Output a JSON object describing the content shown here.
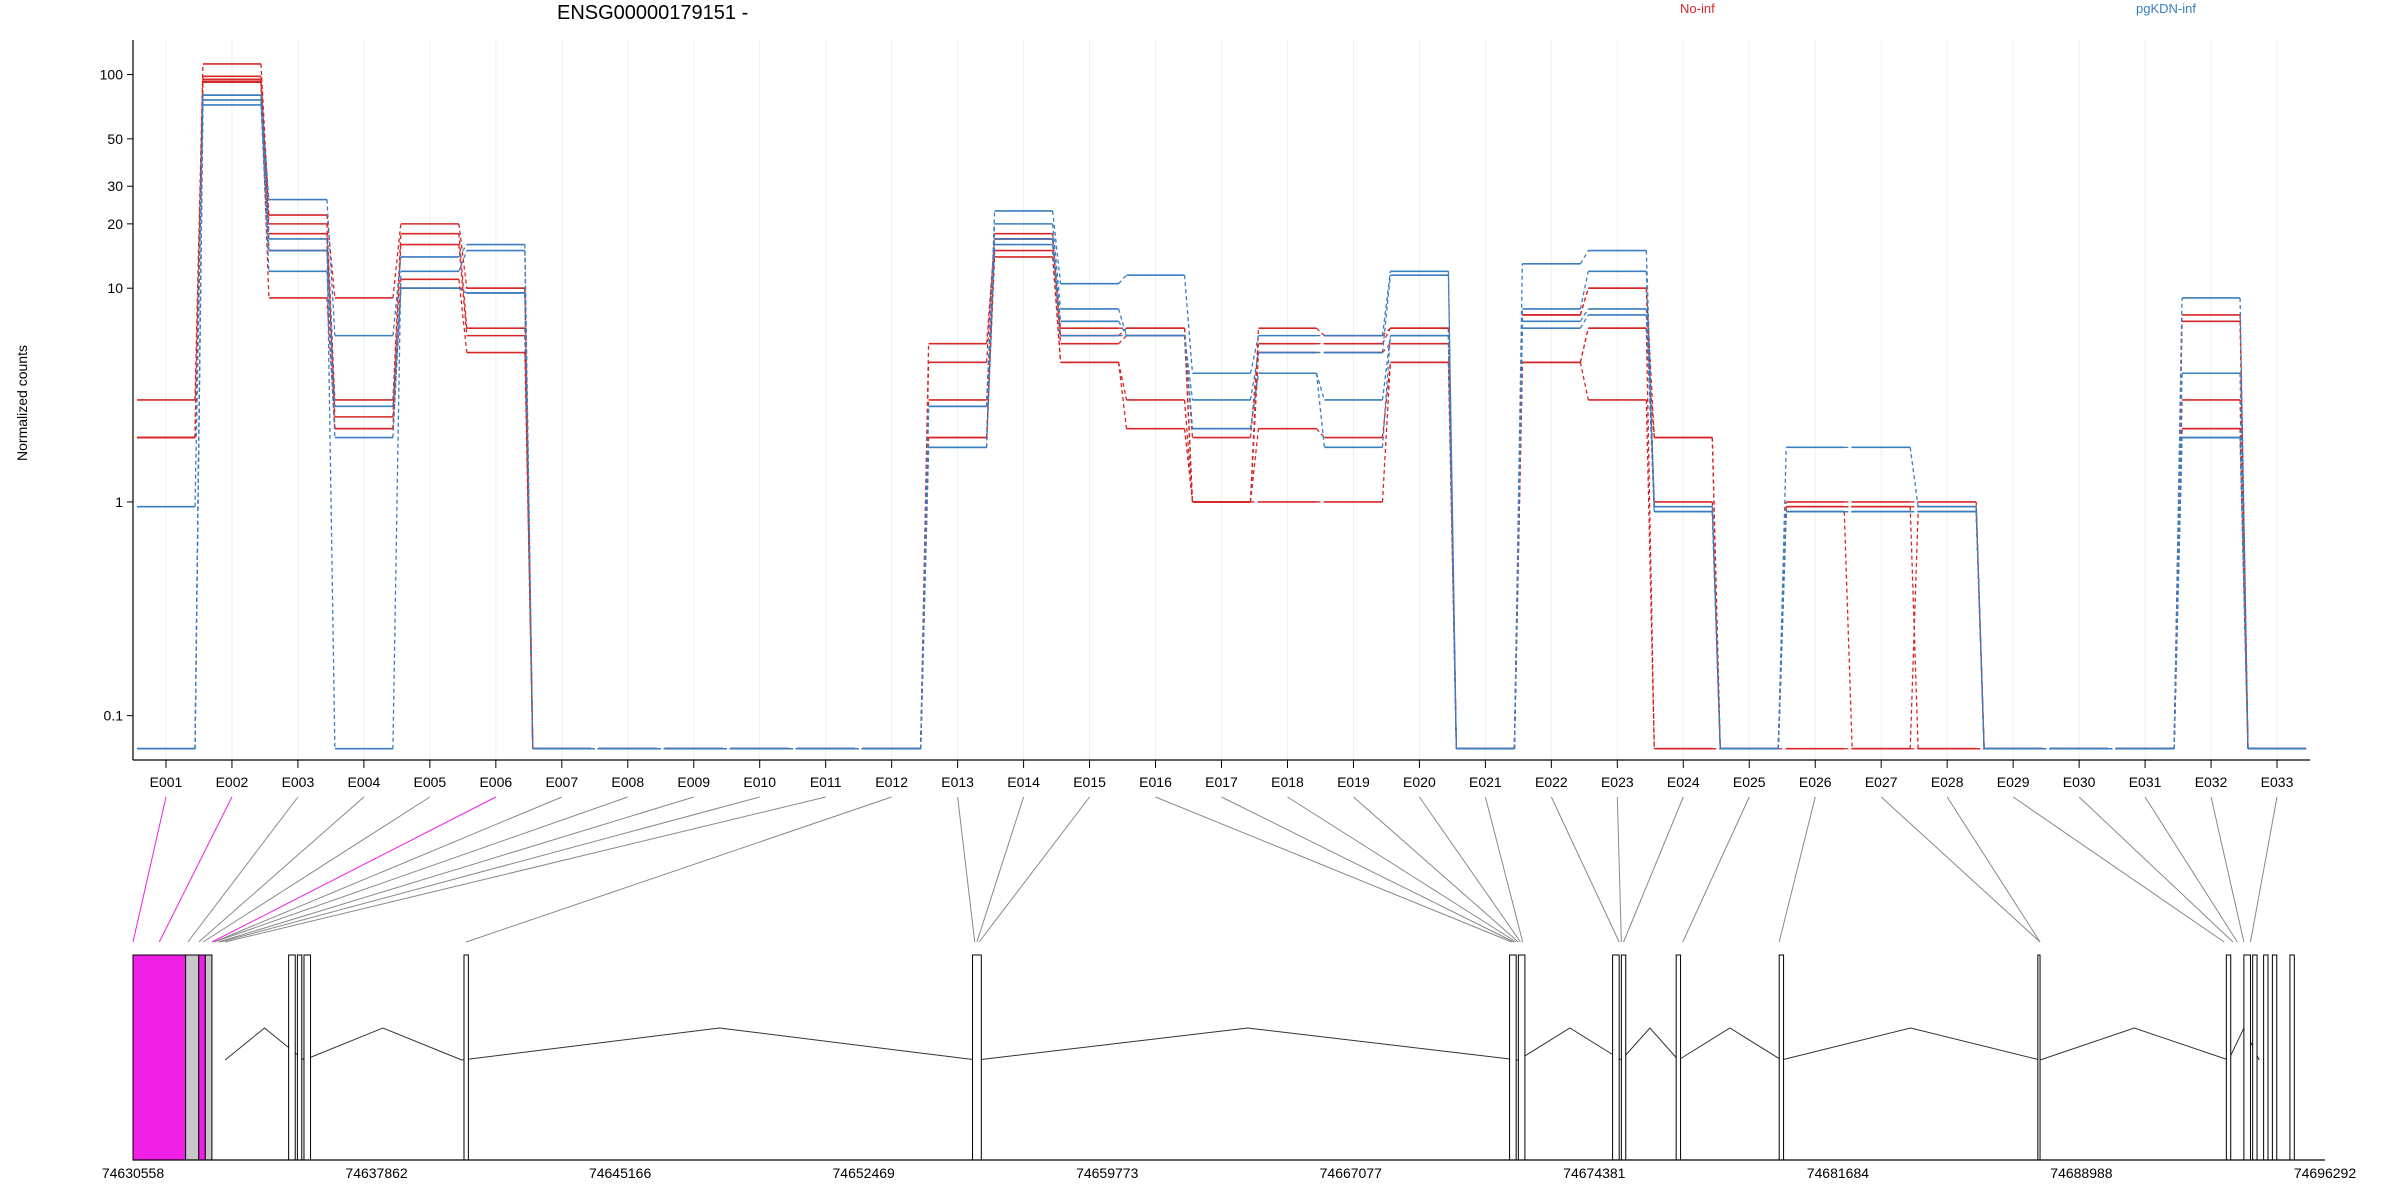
{
  "chart_data": {
    "type": "line",
    "title": "ENSG00000179151 -",
    "ylabel": "Normalized counts",
    "xlabel": "",
    "y_scale": "log",
    "ylim": [
      0.07,
      140
    ],
    "y_ticks": [
      0.1,
      1,
      10,
      20,
      30,
      50,
      100
    ],
    "y_tick_labels": [
      "0.1",
      "1",
      "10",
      "20",
      "30",
      "50",
      "100"
    ],
    "categories": [
      "E001",
      "E002",
      "E003",
      "E004",
      "E005",
      "E006",
      "E007",
      "E008",
      "E009",
      "E010",
      "E011",
      "E012",
      "E013",
      "E014",
      "E015",
      "E016",
      "E017",
      "E018",
      "E019",
      "E020",
      "E021",
      "E022",
      "E023",
      "E024",
      "E025",
      "E026",
      "E027",
      "E028",
      "E029",
      "E030",
      "E031",
      "E032",
      "E033"
    ],
    "legend": [
      {
        "name": "No-inf",
        "color": "#d62728"
      },
      {
        "name": "pgKDN-inf",
        "color": "#3a7dc0"
      }
    ],
    "series": [
      {
        "group": "No-inf",
        "color": "#d62728",
        "values": [
          3.0,
          112,
          22,
          9.0,
          20,
          10.0,
          0.07,
          0.07,
          0.07,
          0.07,
          0.07,
          0.07,
          5.5,
          17,
          6.5,
          6.5,
          2.0,
          5.5,
          5.5,
          6.5,
          0.07,
          7.5,
          10.0,
          2.0,
          0.07,
          1.0,
          1.0,
          1.0,
          0.07,
          0.07,
          0.07,
          7.5,
          0.07
        ]
      },
      {
        "group": "No-inf",
        "color": "#d62728",
        "values": [
          2.0,
          98,
          20,
          3.0,
          18,
          6.5,
          0.07,
          0.07,
          0.07,
          0.07,
          0.07,
          0.07,
          4.5,
          18,
          6.0,
          6.5,
          1.0,
          6.5,
          6.0,
          6.5,
          0.07,
          7.5,
          10.0,
          1.0,
          0.07,
          0.95,
          0.95,
          0.95,
          0.07,
          0.07,
          0.07,
          7.0,
          0.07
        ]
      },
      {
        "group": "No-inf",
        "color": "#d62728",
        "values": [
          2.0,
          95,
          18,
          2.5,
          16,
          6.0,
          0.07,
          0.07,
          0.07,
          0.07,
          0.07,
          0.07,
          3.0,
          17,
          5.5,
          6.0,
          1.0,
          5.0,
          5.0,
          5.5,
          0.07,
          4.5,
          6.5,
          2.0,
          0.07,
          0.9,
          0.07,
          0.9,
          0.07,
          0.07,
          0.07,
          3.0,
          0.07
        ]
      },
      {
        "group": "No-inf",
        "color": "#d62728",
        "values": [
          2.0,
          93,
          15,
          2.2,
          11,
          5.0,
          0.07,
          0.07,
          0.07,
          0.07,
          0.07,
          0.07,
          2.0,
          15,
          4.5,
          3.0,
          1.0,
          1.0,
          1.0,
          4.5,
          0.07,
          4.5,
          3.0,
          0.07,
          0.07,
          0.95,
          0.95,
          0.07,
          0.07,
          0.07,
          0.07,
          2.2,
          0.07
        ]
      },
      {
        "group": "No-inf",
        "color": "#d62728",
        "values": [
          2.0,
          92,
          9.0,
          2.2,
          10.0,
          10.0,
          0.07,
          0.07,
          0.07,
          0.07,
          0.07,
          0.07,
          2.0,
          14,
          4.5,
          2.2,
          1.0,
          2.2,
          2.0,
          4.5,
          0.07,
          4.5,
          6.5,
          0.07,
          0.07,
          0.07,
          0.07,
          0.07,
          0.07,
          0.07,
          0.07,
          2.2,
          0.07
        ]
      },
      {
        "group": "pgKDN-inf",
        "color": "#3a7dc0",
        "values": [
          0.95,
          80,
          26,
          6.0,
          14,
          16,
          0.07,
          0.07,
          0.07,
          0.07,
          0.07,
          0.07,
          1.8,
          23,
          10.5,
          11.5,
          4.0,
          6.0,
          6.0,
          12.0,
          0.07,
          13.0,
          15,
          0.95,
          0.07,
          1.8,
          1.8,
          0.95,
          0.07,
          0.07,
          0.07,
          9.0,
          0.07
        ]
      },
      {
        "group": "pgKDN-inf",
        "color": "#3a7dc0",
        "values": [
          0.07,
          80,
          17,
          0.07,
          12,
          15,
          0.07,
          0.07,
          0.07,
          0.07,
          0.07,
          0.07,
          2.8,
          20,
          8.0,
          6.0,
          3.0,
          5.0,
          5.0,
          11.5,
          0.07,
          8.0,
          12.0,
          0.9,
          0.07,
          0.9,
          0.9,
          0.9,
          0.07,
          0.07,
          0.07,
          4.0,
          0.07
        ]
      },
      {
        "group": "pgKDN-inf",
        "color": "#3a7dc0",
        "values": [
          0.07,
          76,
          15,
          2.8,
          10.0,
          9.5,
          0.07,
          0.07,
          0.07,
          0.07,
          0.07,
          0.07,
          2.8,
          17,
          7.0,
          6.0,
          2.2,
          4.0,
          3.0,
          6.0,
          0.07,
          7.0,
          8.0,
          0.9,
          0.07,
          0.9,
          0.9,
          0.9,
          0.07,
          0.07,
          0.07,
          2.0,
          0.07
        ]
      },
      {
        "group": "pgKDN-inf",
        "color": "#3a7dc0",
        "values": [
          0.07,
          72,
          12,
          2.0,
          10.0,
          9.5,
          0.07,
          0.07,
          0.07,
          0.07,
          0.07,
          0.07,
          1.8,
          16,
          6.0,
          6.0,
          2.2,
          4.0,
          1.8,
          6.0,
          0.07,
          6.5,
          7.5,
          0.9,
          0.07,
          0.9,
          0.9,
          0.9,
          0.07,
          0.07,
          0.07,
          2.0,
          0.07
        ]
      }
    ],
    "genomic_axis": {
      "tick_labels": [
        "74630558",
        "74637862",
        "74645166",
        "74652469",
        "74659773",
        "74667077",
        "74674381",
        "74681684",
        "74688988",
        "74696292"
      ]
    },
    "exon_mapping_points": [
      0.0,
      0.012,
      0.025,
      0.03,
      0.032,
      0.036,
      0.037,
      0.037,
      0.039,
      0.04,
      0.042,
      0.152,
      0.384,
      0.385,
      0.386,
      0.629,
      0.63,
      0.631,
      0.632,
      0.633,
      0.634,
      0.678,
      0.679,
      0.68,
      0.707,
      0.751,
      0.87,
      0.87,
      0.954,
      0.958,
      0.96,
      0.963,
      0.966
    ],
    "highlight_color": "#f01fe6"
  }
}
